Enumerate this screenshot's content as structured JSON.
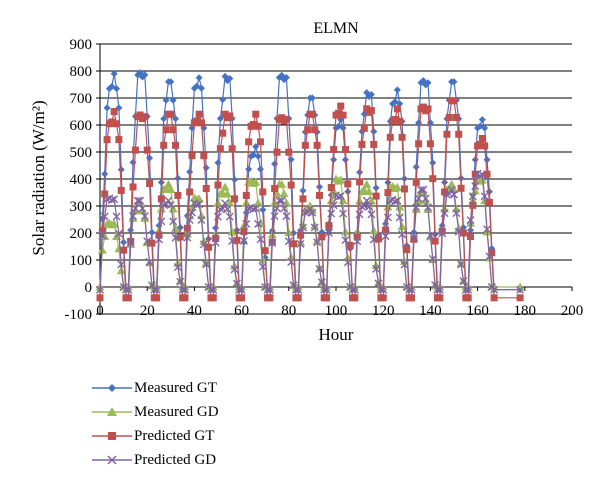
{
  "chart_data": {
    "type": "line",
    "title": "ELMN",
    "xlabel": "Hour",
    "ylabel": "Solar radiation (W/m²)",
    "xlim": [
      0,
      200
    ],
    "ylim": [
      -100,
      900
    ],
    "xticks": [
      "0",
      "20",
      "40",
      "60",
      "80",
      "100",
      "120",
      "140",
      "160",
      "180",
      "200"
    ],
    "yticks": [
      "-100",
      "0",
      "100",
      "200",
      "300",
      "400",
      "500",
      "600",
      "700",
      "800",
      "900"
    ],
    "grid": "horizontal",
    "legend_position": "bottom-left",
    "day_starts": [
      0,
      12,
      24,
      36,
      48,
      60,
      72,
      84,
      96,
      108,
      120,
      132,
      144,
      156,
      168
    ],
    "series": [
      {
        "name": "Measured GT",
        "color": "#4472C4",
        "marker": "diamond",
        "daily_peaks": [
          790,
          810,
          760,
          775,
          780,
          520,
          800,
          700,
          620,
          720,
          730,
          780,
          760,
          620
        ]
      },
      {
        "name": "Measured GD",
        "color": "#9BBB59",
        "marker": "triangle",
        "daily_peaks": [
          240,
          310,
          380,
          330,
          370,
          400,
          380,
          300,
          400,
          380,
          380,
          350,
          380,
          400
        ]
      },
      {
        "name": "Predicted GT",
        "color": "#C0504D",
        "marker": "square",
        "daily_peaks": [
          650,
          650,
          640,
          640,
          640,
          640,
          640,
          640,
          670,
          660,
          660,
          680,
          690,
          550
        ]
      },
      {
        "name": "Predicted GD",
        "color": "#8064A2",
        "marker": "x",
        "daily_peaks": [
          335,
          320,
          320,
          310,
          310,
          300,
          320,
          290,
          340,
          320,
          330,
          360,
          360,
          420
        ]
      }
    ]
  }
}
